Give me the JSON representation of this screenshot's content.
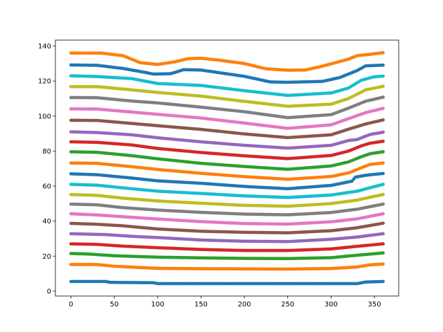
{
  "chart_data": {
    "type": "scatter",
    "title": "",
    "xlabel": "",
    "ylabel": "",
    "xlim": [
      -18,
      378
    ],
    "ylim": [
      -2.8,
      143.4
    ],
    "xticks": [
      0,
      50,
      100,
      150,
      200,
      250,
      300,
      350
    ],
    "yticks": [
      0,
      20,
      40,
      60,
      80,
      100,
      120,
      140
    ],
    "grid": false,
    "legend": "none",
    "x_range": [
      0,
      360
    ],
    "x_step": 2,
    "series": [
      {
        "color": "#1f77b4",
        "points": [
          [
            0,
            5.5
          ],
          [
            40,
            5.5
          ],
          [
            45,
            5.0
          ],
          [
            95,
            4.8
          ],
          [
            100,
            4.3
          ],
          [
            300,
            4.3
          ],
          [
            330,
            4.3
          ],
          [
            340,
            5.2
          ],
          [
            360,
            5.5
          ]
        ]
      },
      {
        "color": "#ff7f0e",
        "points": [
          [
            0,
            15.2
          ],
          [
            30,
            15.2
          ],
          [
            50,
            14.2
          ],
          [
            100,
            13.0
          ],
          [
            150,
            12.8
          ],
          [
            200,
            12.7
          ],
          [
            250,
            12.6
          ],
          [
            300,
            12.9
          ],
          [
            330,
            13.8
          ],
          [
            345,
            15.0
          ],
          [
            360,
            15.5
          ]
        ]
      },
      {
        "color": "#2ca02c",
        "points": [
          [
            0,
            21.5
          ],
          [
            20,
            21.2
          ],
          [
            50,
            20.2
          ],
          [
            100,
            19.4
          ],
          [
            150,
            19.0
          ],
          [
            200,
            18.7
          ],
          [
            250,
            18.6
          ],
          [
            300,
            19.1
          ],
          [
            330,
            20.5
          ],
          [
            360,
            21.8
          ]
        ]
      },
      {
        "color": "#d62728",
        "points": [
          [
            0,
            27.0
          ],
          [
            30,
            26.7
          ],
          [
            60,
            25.7
          ],
          [
            100,
            24.8
          ],
          [
            150,
            23.8
          ],
          [
            200,
            23.2
          ],
          [
            250,
            23.2
          ],
          [
            300,
            24.1
          ],
          [
            330,
            25.6
          ],
          [
            360,
            27.0
          ]
        ]
      },
      {
        "color": "#9467bd",
        "points": [
          [
            0,
            32.8
          ],
          [
            40,
            32.3
          ],
          [
            70,
            31.3
          ],
          [
            100,
            30.6
          ],
          [
            150,
            29.2
          ],
          [
            200,
            28.5
          ],
          [
            250,
            28.3
          ],
          [
            300,
            29.6
          ],
          [
            330,
            30.9
          ],
          [
            360,
            32.8
          ]
        ]
      },
      {
        "color": "#8c564b",
        "points": [
          [
            0,
            38.7
          ],
          [
            30,
            38.2
          ],
          [
            60,
            37.3
          ],
          [
            100,
            35.5
          ],
          [
            150,
            34.2
          ],
          [
            200,
            33.6
          ],
          [
            250,
            33.3
          ],
          [
            300,
            34.5
          ],
          [
            330,
            36.2
          ],
          [
            360,
            38.8
          ]
        ]
      },
      {
        "color": "#e377c2",
        "points": [
          [
            0,
            44.2
          ],
          [
            30,
            43.5
          ],
          [
            60,
            42.5
          ],
          [
            100,
            41.2
          ],
          [
            150,
            39.7
          ],
          [
            200,
            38.6
          ],
          [
            250,
            38.3
          ],
          [
            300,
            39.6
          ],
          [
            330,
            41.3
          ],
          [
            360,
            44.2
          ]
        ]
      },
      {
        "color": "#7f7f7f",
        "points": [
          [
            0,
            49.7
          ],
          [
            30,
            49.3
          ],
          [
            60,
            47.7
          ],
          [
            100,
            46.3
          ],
          [
            150,
            45.0
          ],
          [
            200,
            44.0
          ],
          [
            250,
            43.6
          ],
          [
            300,
            44.9
          ],
          [
            330,
            46.8
          ],
          [
            360,
            49.7
          ]
        ]
      },
      {
        "color": "#bcbd22",
        "points": [
          [
            0,
            55.2
          ],
          [
            30,
            54.7
          ],
          [
            60,
            53.1
          ],
          [
            100,
            51.5
          ],
          [
            150,
            50.2
          ],
          [
            200,
            49.0
          ],
          [
            250,
            48.5
          ],
          [
            300,
            50.0
          ],
          [
            330,
            52.0
          ],
          [
            360,
            55.2
          ]
        ]
      },
      {
        "color": "#17becf",
        "points": [
          [
            0,
            61.0
          ],
          [
            30,
            60.5
          ],
          [
            70,
            58.5
          ],
          [
            100,
            57.1
          ],
          [
            150,
            55.8
          ],
          [
            200,
            54.4
          ],
          [
            250,
            53.5
          ],
          [
            300,
            54.9
          ],
          [
            330,
            57.1
          ],
          [
            360,
            61.0
          ]
        ]
      },
      {
        "color": "#1f77b4",
        "points": [
          [
            0,
            67.0
          ],
          [
            30,
            66.5
          ],
          [
            70,
            64.6
          ],
          [
            100,
            63.0
          ],
          [
            150,
            61.6
          ],
          [
            200,
            59.8
          ],
          [
            250,
            58.5
          ],
          [
            300,
            60.4
          ],
          [
            325,
            62.9
          ],
          [
            327,
            65.0
          ],
          [
            340,
            66.2
          ],
          [
            360,
            67.2
          ]
        ]
      },
      {
        "color": "#ff7f0e",
        "points": [
          [
            0,
            73.2
          ],
          [
            30,
            73.0
          ],
          [
            70,
            71.1
          ],
          [
            100,
            69.5
          ],
          [
            150,
            67.3
          ],
          [
            200,
            65.4
          ],
          [
            250,
            63.9
          ],
          [
            300,
            65.5
          ],
          [
            320,
            67.5
          ],
          [
            335,
            70.5
          ],
          [
            345,
            72.4
          ],
          [
            360,
            73.2
          ]
        ]
      },
      {
        "color": "#2ca02c",
        "points": [
          [
            0,
            79.6
          ],
          [
            30,
            79.3
          ],
          [
            70,
            77.4
          ],
          [
            100,
            75.6
          ],
          [
            150,
            73.0
          ],
          [
            200,
            71.2
          ],
          [
            250,
            69.6
          ],
          [
            300,
            71.5
          ],
          [
            320,
            73.8
          ],
          [
            335,
            76.8
          ],
          [
            345,
            78.5
          ],
          [
            360,
            79.6
          ]
        ]
      },
      {
        "color": "#d62728",
        "points": [
          [
            0,
            85.3
          ],
          [
            30,
            85.0
          ],
          [
            70,
            83.5
          ],
          [
            100,
            81.5
          ],
          [
            150,
            79.2
          ],
          [
            200,
            77.3
          ],
          [
            250,
            75.7
          ],
          [
            300,
            77.5
          ],
          [
            320,
            80.0
          ],
          [
            335,
            83.0
          ],
          [
            345,
            84.5
          ],
          [
            360,
            85.6
          ]
        ]
      },
      {
        "color": "#9467bd",
        "points": [
          [
            0,
            91.0
          ],
          [
            30,
            90.6
          ],
          [
            70,
            89.3
          ],
          [
            100,
            87.6
          ],
          [
            150,
            85.3
          ],
          [
            200,
            83.3
          ],
          [
            250,
            81.7
          ],
          [
            300,
            83.3
          ],
          [
            320,
            86.0
          ],
          [
            330,
            86.6
          ],
          [
            345,
            89.5
          ],
          [
            360,
            90.8
          ]
        ]
      },
      {
        "color": "#8c564b",
        "points": [
          [
            0,
            97.6
          ],
          [
            30,
            97.5
          ],
          [
            70,
            95.8
          ],
          [
            100,
            94.5
          ],
          [
            150,
            92.4
          ],
          [
            200,
            89.8
          ],
          [
            250,
            87.7
          ],
          [
            300,
            89.3
          ],
          [
            320,
            92.5
          ],
          [
            340,
            95.5
          ],
          [
            360,
            97.8
          ]
        ]
      },
      {
        "color": "#e377c2",
        "points": [
          [
            0,
            104.1
          ],
          [
            30,
            104.0
          ],
          [
            70,
            102.3
          ],
          [
            100,
            101.0
          ],
          [
            150,
            98.9
          ],
          [
            200,
            96.0
          ],
          [
            250,
            93.0
          ],
          [
            300,
            95.0
          ],
          [
            320,
            98.5
          ],
          [
            340,
            102.0
          ],
          [
            360,
            104.4
          ]
        ]
      },
      {
        "color": "#7f7f7f",
        "points": [
          [
            0,
            110.6
          ],
          [
            30,
            110.5
          ],
          [
            70,
            108.6
          ],
          [
            100,
            107.5
          ],
          [
            150,
            105.1
          ],
          [
            200,
            102.5
          ],
          [
            250,
            99.1
          ],
          [
            300,
            100.8
          ],
          [
            320,
            104.5
          ],
          [
            340,
            108.5
          ],
          [
            360,
            110.8
          ]
        ]
      },
      {
        "color": "#bcbd22",
        "points": [
          [
            0,
            116.8
          ],
          [
            30,
            116.8
          ],
          [
            70,
            115.0
          ],
          [
            100,
            113.5
          ],
          [
            150,
            111.4
          ],
          [
            200,
            108.4
          ],
          [
            250,
            105.6
          ],
          [
            300,
            106.8
          ],
          [
            320,
            110.0
          ],
          [
            340,
            115.0
          ],
          [
            360,
            117.0
          ]
        ]
      },
      {
        "color": "#17becf",
        "points": [
          [
            0,
            123.0
          ],
          [
            30,
            122.6
          ],
          [
            70,
            121.4
          ],
          [
            100,
            118.6
          ],
          [
            150,
            117.5
          ],
          [
            200,
            114.5
          ],
          [
            250,
            111.8
          ],
          [
            300,
            113.2
          ],
          [
            320,
            116.0
          ],
          [
            335,
            120.5
          ],
          [
            350,
            122.5
          ],
          [
            360,
            122.8
          ]
        ]
      },
      {
        "color": "#1f77b4",
        "points": [
          [
            0,
            129.2
          ],
          [
            30,
            129.0
          ],
          [
            60,
            127.2
          ],
          [
            85,
            125.0
          ],
          [
            95,
            124.0
          ],
          [
            115,
            124.2
          ],
          [
            130,
            126.5
          ],
          [
            150,
            126.3
          ],
          [
            200,
            122.7
          ],
          [
            230,
            119.5
          ],
          [
            250,
            119.3
          ],
          [
            290,
            119.8
          ],
          [
            310,
            122.0
          ],
          [
            330,
            126.0
          ],
          [
            340,
            128.7
          ],
          [
            360,
            129.1
          ]
        ]
      },
      {
        "color": "#ff7f0e",
        "points": [
          [
            0,
            136.0
          ],
          [
            35,
            136.0
          ],
          [
            60,
            134.5
          ],
          [
            80,
            130.5
          ],
          [
            100,
            129.5
          ],
          [
            120,
            131.0
          ],
          [
            135,
            132.8
          ],
          [
            150,
            133.0
          ],
          [
            170,
            132.0
          ],
          [
            200,
            130.0
          ],
          [
            225,
            127.0
          ],
          [
            250,
            126.2
          ],
          [
            270,
            126.3
          ],
          [
            290,
            128.5
          ],
          [
            305,
            130.5
          ],
          [
            320,
            132.5
          ],
          [
            330,
            134.5
          ],
          [
            345,
            135.3
          ],
          [
            360,
            136.2
          ]
        ]
      }
    ]
  }
}
